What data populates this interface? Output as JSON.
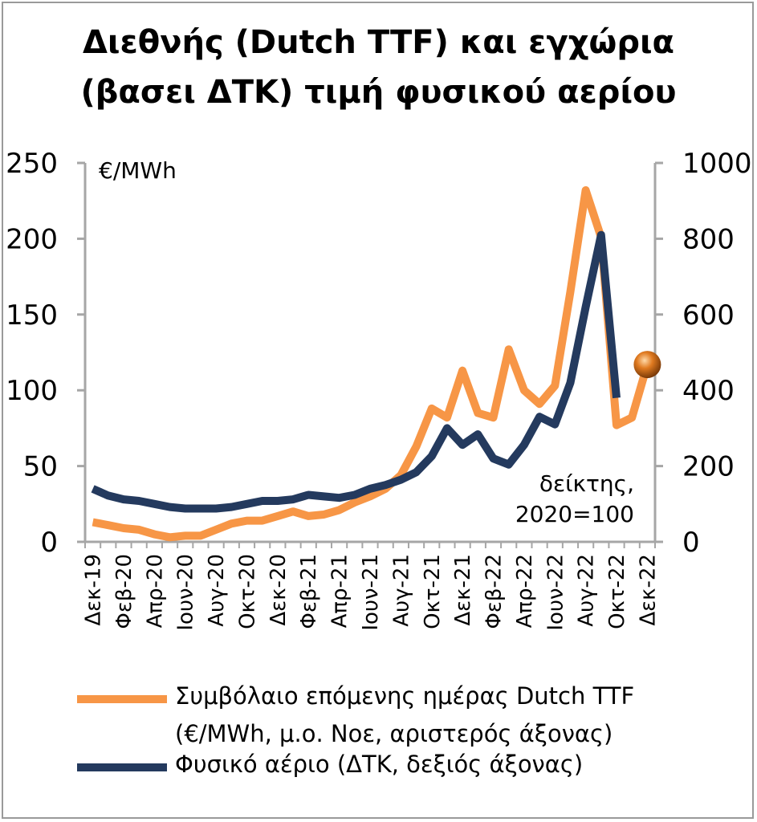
{
  "title": {
    "line1": "Διεθνής (Dutch TTF) και εγχώρια",
    "line2": "(βασει ΔΤΚ) τιμή φυσικού αερίου"
  },
  "colors": {
    "ttf": "#F79646",
    "ppi": "#243A5E",
    "axis": "#A6A6A6"
  },
  "chart_data": {
    "type": "line",
    "title": "Διεθνής (Dutch TTF) και εγχώρια (βασει ΔΤΚ) τιμή φυσικού αερίου",
    "left_axis": {
      "unit_label": "€/MWh",
      "ylim": [
        0,
        250
      ],
      "ticks": [
        "0",
        "50",
        "100",
        "150",
        "200",
        "250"
      ]
    },
    "right_axis": {
      "unit_label": "δείκτης, 2020=100",
      "unit_label_lines": [
        "δείκτης,",
        "2020=100"
      ],
      "ylim": [
        0,
        1000
      ],
      "ticks": [
        "0",
        "200",
        "400",
        "600",
        "800",
        "1000"
      ]
    },
    "x": [
      "Δεκ-19",
      "Ιαν-20",
      "Φεβ-20",
      "Μαρ-20",
      "Απρ-20",
      "Μαϊ-20",
      "Ιουν-20",
      "Ιουλ-20",
      "Αυγ-20",
      "Σεπ-20",
      "Οκτ-20",
      "Νοε-20",
      "Δεκ-20",
      "Ιαν-21",
      "Φεβ-21",
      "Μαρ-21",
      "Απρ-21",
      "Μαϊ-21",
      "Ιουν-21",
      "Ιουλ-21",
      "Αυγ-21",
      "Σεπ-21",
      "Οκτ-21",
      "Νοε-21",
      "Δεκ-21",
      "Ιαν-22",
      "Φεβ-22",
      "Μαρ-22",
      "Απρ-22",
      "Μαϊ-22",
      "Ιουν-22",
      "Ιουλ-22",
      "Αυγ-22",
      "Σεπ-22",
      "Οκτ-22",
      "Νοε-22",
      "Δεκ-22"
    ],
    "x_tick_labels": [
      "Δεκ-19",
      "Φεβ-20",
      "Απρ-20",
      "Ιουν-20",
      "Αυγ-20",
      "Οκτ-20",
      "Δεκ-20",
      "Φεβ-21",
      "Απρ-21",
      "Ιουν-21",
      "Αυγ-21",
      "Οκτ-21",
      "Δεκ-21",
      "Φεβ-22",
      "Απρ-22",
      "Ιουν-22",
      "Αυγ-22",
      "Οκτ-22",
      "Δεκ-22"
    ],
    "series": [
      {
        "name": "Συμβόλαιο επόμενης ημέρας Dutch TTF (€/MWh, μ.ο. Νοε, αριστερός άξονας)",
        "axis": "left",
        "values": [
          13,
          11,
          9,
          8,
          5,
          3,
          4,
          4,
          8,
          12,
          14,
          14,
          17,
          20,
          17,
          18,
          21,
          26,
          30,
          35,
          44,
          63,
          88,
          82,
          113,
          85,
          82,
          127,
          100,
          91,
          103,
          165,
          232,
          201,
          77,
          82,
          117
        ]
      },
      {
        "name": "Φυσικό αέριο (ΔΤΚ, δεξιός άξονας)",
        "axis": "right",
        "values": [
          140,
          122,
          112,
          108,
          100,
          92,
          88,
          88,
          88,
          92,
          100,
          108,
          108,
          112,
          124,
          120,
          116,
          124,
          140,
          150,
          164,
          184,
          226,
          300,
          256,
          284,
          220,
          204,
          256,
          330,
          310,
          420,
          620,
          810,
          380,
          null,
          null
        ]
      }
    ],
    "marker": {
      "series": 0,
      "index": 36,
      "value": 117
    },
    "legend": {
      "placement": "bottom",
      "items": [
        {
          "lines": [
            "Συμβόλαιο επόμενης ημέρας Dutch TTF",
            "(€/MWh, μ.ο. Νοε, αριστερός άξονας)"
          ]
        },
        {
          "lines": [
            "Φυσικό αέριο (ΔΤΚ, δεξιός άξονας)"
          ]
        }
      ]
    },
    "grid": false
  }
}
